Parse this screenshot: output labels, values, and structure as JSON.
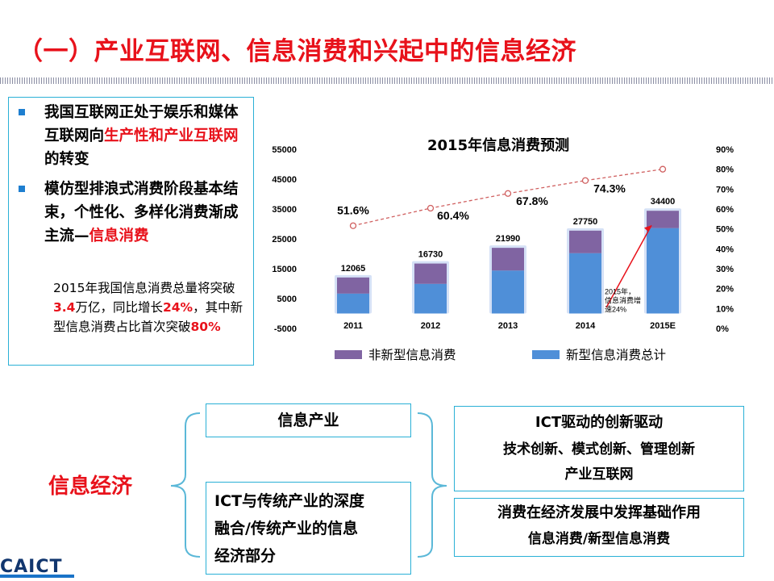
{
  "slide": {
    "title": "（一）产业互联网、信息消费和兴起中的信息经济"
  },
  "left_panel": {
    "bullet1": {
      "text": "我国互联网正处于娱乐和媒体互联网向",
      "highlight": "生产性和产业互联网",
      "tail": "的转变"
    },
    "bullet2": {
      "text": "模仿型排浪式消费阶段基本结束，个性化、多样化消费渐成主流—",
      "highlight": "信息消费",
      "tail": ""
    },
    "note": {
      "p1": "2015年我国信息消费总量将突破",
      "v1": "3.4",
      "p2": "万亿，同比增长",
      "v2": "24%",
      "p3": "，其中新型信息消费占比首次突破",
      "v3": "80%"
    }
  },
  "chart_data": {
    "type": "bar",
    "title": "2015年信息消费预测",
    "categories": [
      "2011",
      "2012",
      "2013",
      "2014",
      "2015E"
    ],
    "series": [
      {
        "name": "非新型信息消费",
        "values": [
          5400,
          6800,
          7600,
          7550,
          5800
        ],
        "color": "#8064a2"
      },
      {
        "name": "新型信息消费总计",
        "values": [
          6665,
          9930,
          14390,
          20200,
          28600
        ],
        "color": "#4f8fd8"
      }
    ],
    "totals": [
      12065,
      16730,
      21990,
      27750,
      34400
    ],
    "ratio_series": {
      "values": [
        51.6,
        60.4,
        67.8,
        74.3,
        80.0
      ],
      "labels": [
        "51.6%",
        "60.4%",
        "67.8%",
        "74.3%",
        ""
      ]
    },
    "y_left": {
      "min": -5000,
      "max": 55000,
      "ticks": [
        "55000",
        "45000",
        "35000",
        "25000",
        "15000",
        "5000",
        "-5000"
      ]
    },
    "y_right": {
      "min": 0,
      "max": 90,
      "ticks": [
        "90%",
        "80%",
        "70%",
        "60%",
        "50%",
        "40%",
        "30%",
        "20%",
        "10%",
        "0%"
      ]
    },
    "annotation": {
      "lines": [
        "2015年，",
        "信息消费增",
        "速24%"
      ]
    }
  },
  "bottom": {
    "econ_label": "信息经济",
    "box_industry": "信息产业",
    "box_fusion": [
      "ICT与传统产业的深度",
      "融合/传统产业的信息",
      "经济部分"
    ],
    "box_ict": [
      "ICT驱动的创新驱动",
      "技术创新、模式创新、管理创新",
      "产业互联网"
    ],
    "box_consume": [
      "消费在经济发展中发挥基础作用",
      "信息消费/新型信息消费"
    ],
    "logo": "CAICT"
  }
}
